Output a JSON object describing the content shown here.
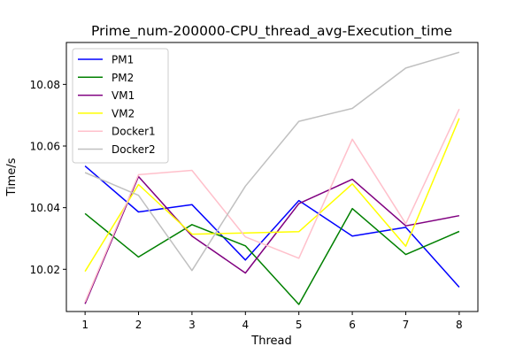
{
  "chart_data": {
    "type": "line",
    "title": "Prime_num-200000-CPU_thread_avg-Execution_time",
    "xlabel": "Thread",
    "ylabel": "Time/s",
    "x": [
      1,
      2,
      3,
      4,
      5,
      6,
      7,
      8
    ],
    "xticks": [
      "1",
      "2",
      "3",
      "4",
      "5",
      "6",
      "7",
      "8"
    ],
    "yticks": [
      10.02,
      10.04,
      10.06,
      10.08
    ],
    "ytick_labels": [
      "10.02",
      "10.04",
      "10.06",
      "10.08"
    ],
    "xlim": [
      0.65,
      8.35
    ],
    "ylim": [
      10.0063,
      10.0936
    ],
    "grid": false,
    "legend_position": "upper-left",
    "series": [
      {
        "name": "PM1",
        "color": "#0000ff",
        "values": [
          10.0535,
          10.0386,
          10.041,
          10.023,
          10.0423,
          10.0308,
          10.0336,
          10.0142
        ]
      },
      {
        "name": "PM2",
        "color": "#008000",
        "values": [
          10.0381,
          10.024,
          10.0345,
          10.0276,
          10.0086,
          10.0397,
          10.0248,
          10.0323
        ]
      },
      {
        "name": "VM1",
        "color": "#800080",
        "values": [
          10.0088,
          10.0501,
          10.0308,
          10.0188,
          10.0413,
          10.0492,
          10.0341,
          10.0374
        ]
      },
      {
        "name": "VM2",
        "color": "#ffff00",
        "values": [
          10.0193,
          10.0475,
          10.0314,
          10.0318,
          10.0322,
          10.0477,
          10.0275,
          10.069
        ]
      },
      {
        "name": "Docker1",
        "color": "#ffc0cb",
        "values": [
          10.0094,
          10.0507,
          10.0521,
          10.0305,
          10.0236,
          10.0622,
          10.0348,
          10.072
        ]
      },
      {
        "name": "Docker2",
        "color": "#c0c0c0",
        "values": [
          10.0514,
          10.044,
          10.0196,
          10.047,
          10.068,
          10.0722,
          10.0853,
          10.0904
        ]
      }
    ]
  }
}
